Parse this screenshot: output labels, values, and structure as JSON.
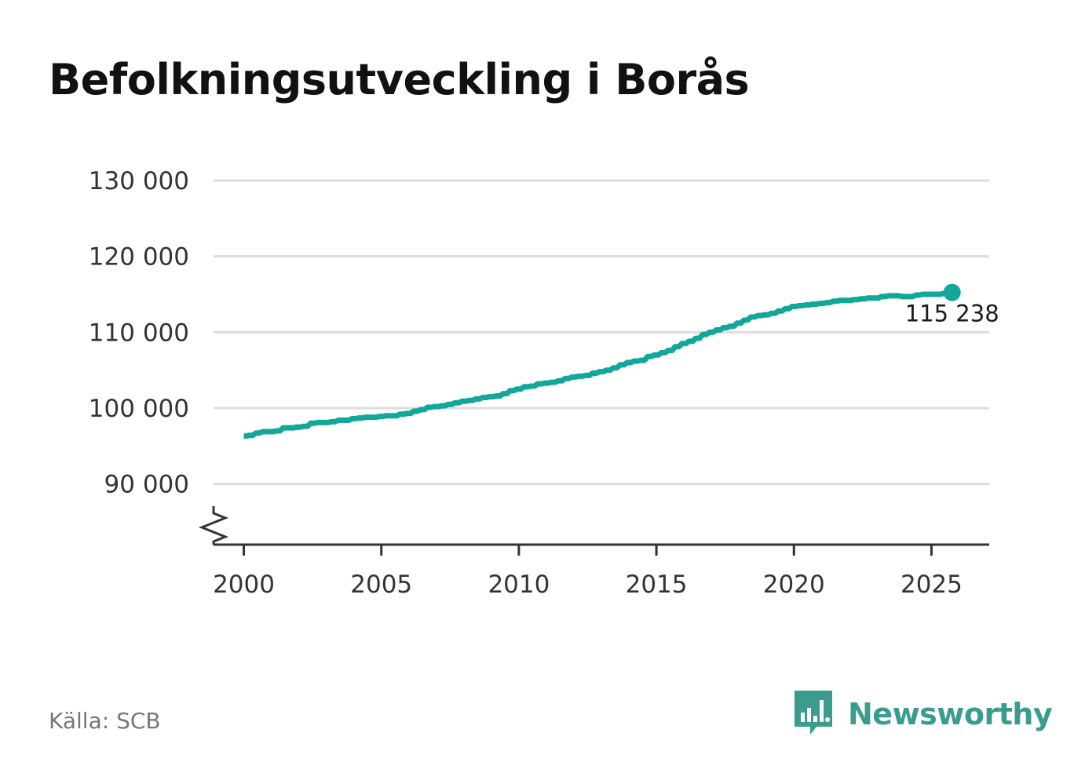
{
  "title": "Befolkningsutveckling i Borås",
  "source": "Källa: SCB",
  "brand": {
    "name": "Newsworthy",
    "icon": "newsworthy-logo-icon",
    "color": "#3a9b8e"
  },
  "colors": {
    "line": "#11a89a",
    "grid": "#dddddd",
    "axis": "#333333"
  },
  "chart_data": {
    "type": "line",
    "title": "Befolkningsutveckling i Borås",
    "xlabel": "",
    "ylabel": "",
    "x_ticks": [
      "2000",
      "2005",
      "2010",
      "2015",
      "2020",
      "2025"
    ],
    "y_ticks": [
      "90 000",
      "100 000",
      "110 000",
      "120 000",
      "130 000"
    ],
    "ylim": [
      82000,
      130000
    ],
    "xlim": [
      1998.9,
      2027.1
    ],
    "y_axis_break": true,
    "grid": "horizontal",
    "series": [
      {
        "x": [
          2000.0,
          2000.25,
          2000.5,
          2000.75,
          2001.0,
          2001.25,
          2001.5,
          2001.75,
          2002.0,
          2002.25,
          2002.5,
          2002.75,
          2003.0,
          2003.25,
          2003.5,
          2003.75,
          2004.0,
          2004.25,
          2004.5,
          2004.75,
          2005.0,
          2005.25,
          2005.5,
          2005.75,
          2006.0,
          2006.25,
          2006.5,
          2006.75,
          2007.0,
          2007.25,
          2007.5,
          2007.75,
          2008.0,
          2008.25,
          2008.5,
          2008.75,
          2009.0,
          2009.25,
          2009.5,
          2009.75,
          2010.0,
          2010.25,
          2010.5,
          2010.75,
          2011.0,
          2011.25,
          2011.5,
          2011.75,
          2012.0,
          2012.25,
          2012.5,
          2012.75,
          2013.0,
          2013.25,
          2013.5,
          2013.75,
          2014.0,
          2014.25,
          2014.5,
          2014.75,
          2015.0,
          2015.25,
          2015.5,
          2015.75,
          2016.0,
          2016.25,
          2016.5,
          2016.75,
          2017.0,
          2017.25,
          2017.5,
          2017.75,
          2018.0,
          2018.25,
          2018.5,
          2018.75,
          2019.0,
          2019.25,
          2019.5,
          2019.75,
          2020.0,
          2020.25,
          2020.5,
          2020.75,
          2021.0,
          2021.25,
          2021.5,
          2021.75,
          2022.0,
          2022.25,
          2022.5,
          2022.75,
          2023.0,
          2023.25,
          2023.5,
          2023.75,
          2024.0,
          2024.25,
          2024.5,
          2024.75,
          2025.0,
          2025.25,
          2025.5,
          2025.75
        ],
        "values": [
          96300,
          96400,
          96700,
          96900,
          96900,
          97000,
          97400,
          97400,
          97500,
          97600,
          98000,
          98100,
          98100,
          98200,
          98400,
          98400,
          98600,
          98700,
          98800,
          98800,
          98900,
          99000,
          99000,
          99200,
          99300,
          99600,
          99800,
          100100,
          100200,
          100300,
          100500,
          100700,
          100900,
          101000,
          101200,
          101400,
          101500,
          101600,
          101900,
          102300,
          102500,
          102800,
          102900,
          103200,
          103300,
          103400,
          103600,
          103900,
          104100,
          104200,
          104300,
          104600,
          104800,
          105000,
          105300,
          105700,
          106000,
          106200,
          106300,
          106800,
          107000,
          107300,
          107600,
          108100,
          108500,
          108800,
          109200,
          109700,
          110000,
          110300,
          110600,
          110800,
          111200,
          111600,
          112000,
          112200,
          112300,
          112500,
          112800,
          113100,
          113400,
          113500,
          113600,
          113700,
          113800,
          113900,
          114100,
          114200,
          114200,
          114300,
          114400,
          114500,
          114500,
          114700,
          114800,
          114800,
          114700,
          114700,
          114900,
          115000,
          115000,
          115000,
          115100,
          115238
        ]
      }
    ],
    "end_label": "115 238"
  }
}
